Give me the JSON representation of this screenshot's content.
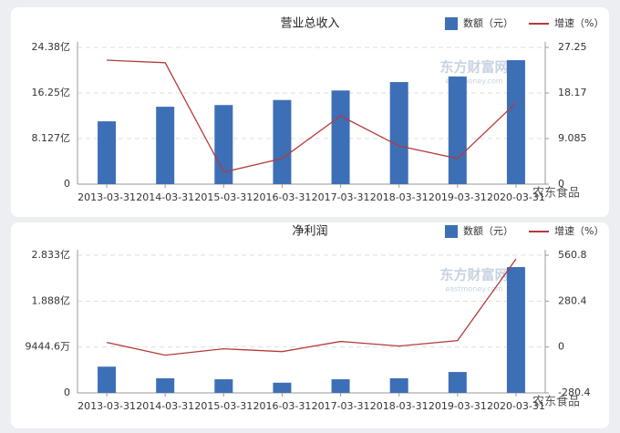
{
  "chart_data": [
    {
      "type": "bar",
      "title": "营业总收入",
      "categories": [
        "2013-03-31",
        "2014-03-31",
        "2015-03-31",
        "2016-03-31",
        "2017-03-31",
        "2018-03-31",
        "2019-03-31",
        "2020-03-31"
      ],
      "series": [
        {
          "name": "数额（元）",
          "color": "#3d6fb6",
          "values": [
            11.2,
            13.8,
            14.1,
            15.0,
            16.7,
            18.2,
            19.2,
            22.1
          ]
        },
        {
          "name": "增速（%）",
          "color": "#b53a3a",
          "axis": "y2",
          "type": "line",
          "values": [
            24.7,
            24.2,
            2.4,
            5.1,
            13.6,
            7.6,
            5.1,
            16.2
          ]
        }
      ],
      "ylim": [
        0,
        24.38
      ],
      "yticks": [
        0,
        {
          "value": 8.127,
          "label": "8.127亿"
        },
        {
          "value": 16.25,
          "label": "16.25亿"
        },
        {
          "value": 24.38,
          "label": "24.38亿"
        }
      ],
      "y2lim": [
        0,
        27.25
      ],
      "y2ticks": [
        0,
        9.085,
        18.17,
        27.25
      ],
      "grid": true,
      "watermark": "东方财富网",
      "watermark_url": "eastmoney.com",
      "credit": "农东食品"
    },
    {
      "type": "bar",
      "title": "净利润",
      "categories": [
        "2013-03-31",
        "2014-03-31",
        "2015-03-31",
        "2016-03-31",
        "2017-03-31",
        "2018-03-31",
        "2019-03-31",
        "2020-03-31"
      ],
      "series": [
        {
          "name": "数额（元）",
          "color": "#3d6fb6",
          "values": [
            0.54,
            0.3,
            0.28,
            0.21,
            0.28,
            0.3,
            0.43,
            2.59
          ]
        },
        {
          "name": "增速（%）",
          "color": "#b53a3a",
          "axis": "y2",
          "type": "line",
          "values": [
            28,
            -50,
            -11,
            -28,
            34,
            6,
            39,
            538
          ]
        }
      ],
      "ylim": [
        0,
        2.833
      ],
      "yticks": [
        0,
        {
          "value": 0.94446,
          "label": "9444.6万"
        },
        {
          "value": 1.888,
          "label": "1.888亿"
        },
        {
          "value": 2.833,
          "label": "2.833亿"
        }
      ],
      "y2lim": [
        -280.4,
        560.8
      ],
      "y2ticks": [
        -280.4,
        0,
        280.4,
        560.8
      ],
      "grid": true,
      "watermark": "东方财富网",
      "watermark_url": "eastmoney.com",
      "credit": "农东食品"
    }
  ]
}
